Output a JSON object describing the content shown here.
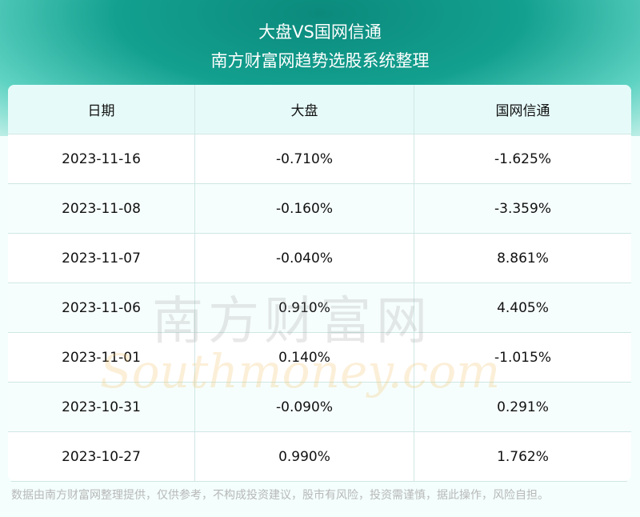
{
  "title": "大盘VS国网信通",
  "subtitle": "南方财富网趋势选股系统整理",
  "watermark": {
    "cn": "南方财富网",
    "en": "Southmoney.com"
  },
  "table": {
    "headers": [
      "日期",
      "大盘",
      "国网信通"
    ],
    "rows": [
      [
        "2023-11-16",
        "-0.710%",
        "-1.625%"
      ],
      [
        "2023-11-08",
        "-0.160%",
        "-3.359%"
      ],
      [
        "2023-11-07",
        "-0.040%",
        "8.861%"
      ],
      [
        "2023-11-06",
        "0.910%",
        "4.405%"
      ],
      [
        "2023-11-01",
        "0.140%",
        "-1.015%"
      ],
      [
        "2023-10-31",
        "-0.090%",
        "0.291%"
      ],
      [
        "2023-10-27",
        "0.990%",
        "1.762%"
      ]
    ]
  },
  "footer": "数据由南方财富网整理提供，仅供参考，不构成投资建议，股市有风险，投资需谨慎，据此操作，风险自担。"
}
